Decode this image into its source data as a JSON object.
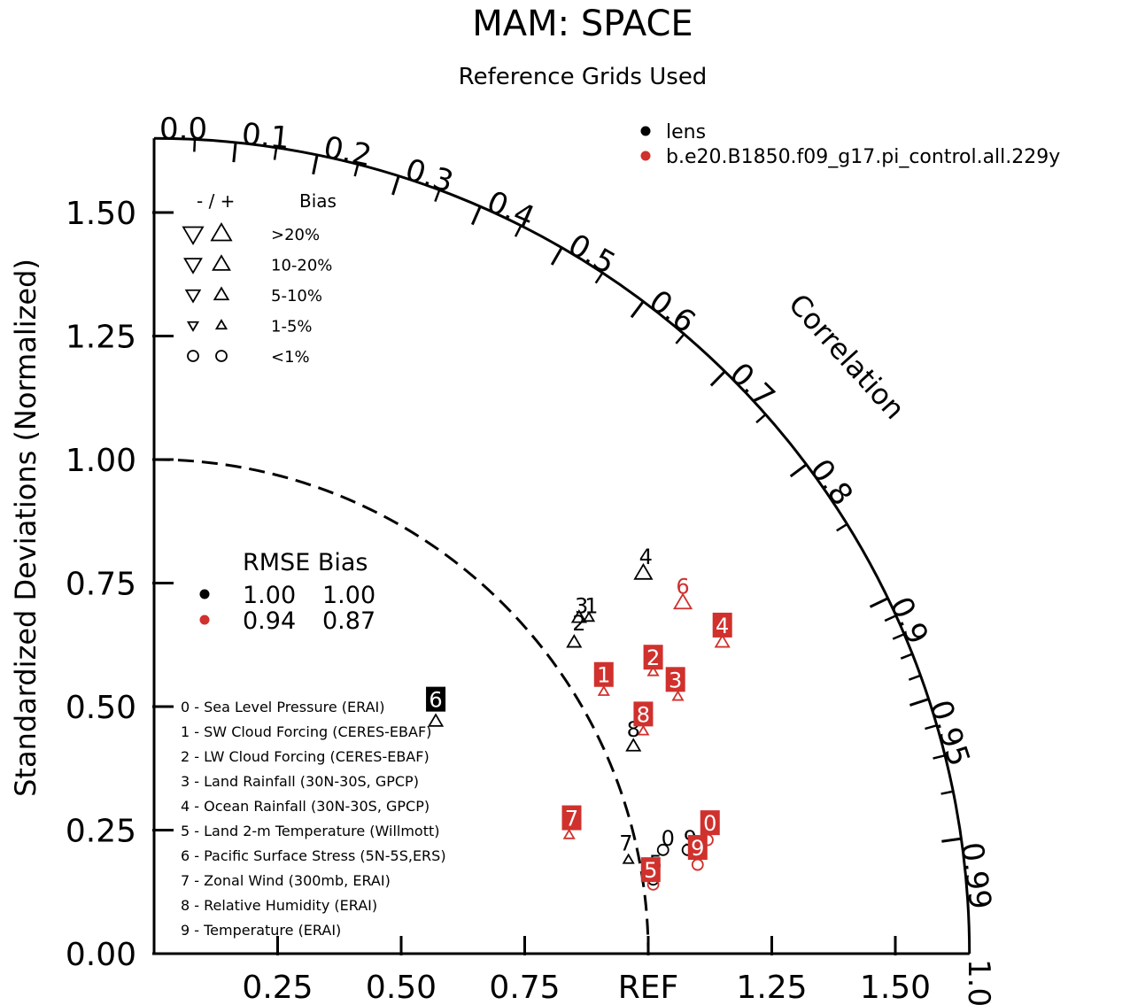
{
  "chart_data": {
    "type": "scatter",
    "subtype": "taylor-diagram",
    "title": "MAM: SPACE",
    "subtitle": "Reference Grids Used",
    "ylabel": "Standardized Deviations (Normalized)",
    "correlation_label": "Correlation",
    "ref_label": "REF",
    "sd_range": [
      0,
      1.65
    ],
    "y_ticks": [
      {
        "value": 0.0,
        "label": "0.00"
      },
      {
        "value": 0.25,
        "label": "0.25"
      },
      {
        "value": 0.5,
        "label": "0.50"
      },
      {
        "value": 0.75,
        "label": "0.75"
      },
      {
        "value": 1.0,
        "label": "1.00"
      },
      {
        "value": 1.25,
        "label": "1.25"
      },
      {
        "value": 1.5,
        "label": "1.50"
      }
    ],
    "x_ticks": [
      {
        "value": 0.25,
        "label": "0.25"
      },
      {
        "value": 0.5,
        "label": "0.50"
      },
      {
        "value": 0.75,
        "label": "0.75"
      },
      {
        "value": 1.0,
        "label": "REF"
      },
      {
        "value": 1.25,
        "label": "1.25"
      },
      {
        "value": 1.5,
        "label": "1.50"
      }
    ],
    "correlation_ticks": [
      {
        "value": 0.0,
        "label": "0.0"
      },
      {
        "value": 0.1,
        "label": "0.1"
      },
      {
        "value": 0.2,
        "label": "0.2"
      },
      {
        "value": 0.3,
        "label": "0.3"
      },
      {
        "value": 0.4,
        "label": "0.4"
      },
      {
        "value": 0.5,
        "label": "0.5"
      },
      {
        "value": 0.6,
        "label": "0.6"
      },
      {
        "value": 0.7,
        "label": "0.7"
      },
      {
        "value": 0.8,
        "label": "0.8"
      },
      {
        "value": 0.9,
        "label": "0.9"
      },
      {
        "value": 0.95,
        "label": "0.95"
      },
      {
        "value": 0.99,
        "label": "0.99"
      },
      {
        "value": 1.0,
        "label": "1.0"
      }
    ],
    "minor_correlation_ticks": [
      0.05,
      0.15,
      0.25,
      0.35,
      0.45,
      0.55,
      0.65,
      0.75,
      0.85,
      0.91,
      0.92,
      0.93,
      0.94,
      0.96,
      0.97,
      0.98
    ],
    "series": [
      {
        "name": "lens",
        "color": "#000000",
        "points": [
          {
            "id": "0",
            "x": 1.03,
            "y": 0.21,
            "bias": "<1%"
          },
          {
            "id": "1",
            "x": 0.88,
            "y": 0.68,
            "bias": "1-5%"
          },
          {
            "id": "2",
            "x": 0.85,
            "y": 0.63,
            "bias": "5-10%"
          },
          {
            "id": "3",
            "x": 0.86,
            "y": 0.68,
            "bias": "5-10%"
          },
          {
            "id": "4",
            "x": 0.99,
            "y": 0.77,
            "bias": "10-20%"
          },
          {
            "id": "5",
            "x": 1.01,
            "y": 0.15,
            "bias": "<1%"
          },
          {
            "id": "6",
            "x": 0.57,
            "y": 0.47,
            "bias": "5-10%"
          },
          {
            "id": "7",
            "x": 0.96,
            "y": 0.19,
            "bias": "1-5%"
          },
          {
            "id": "8",
            "x": 0.97,
            "y": 0.42,
            "bias": "5-10%"
          },
          {
            "id": "9",
            "x": 1.08,
            "y": 0.21,
            "bias": "<1%"
          }
        ]
      },
      {
        "name": "b.e20.B1850.f09_g17.pi_control.all.229y",
        "color": "#d0312d",
        "points": [
          {
            "id": "0",
            "x": 1.12,
            "y": 0.23,
            "bias": "<1%"
          },
          {
            "id": "1",
            "x": 0.91,
            "y": 0.53,
            "bias": "1-5%"
          },
          {
            "id": "2",
            "x": 1.01,
            "y": 0.57,
            "bias": "1-5%"
          },
          {
            "id": "3",
            "x": 1.06,
            "y": 0.52,
            "bias": "1-5%"
          },
          {
            "id": "4",
            "x": 1.15,
            "y": 0.63,
            "bias": "5-10%"
          },
          {
            "id": "5",
            "x": 1.01,
            "y": 0.14,
            "bias": "<1%"
          },
          {
            "id": "6",
            "x": 1.07,
            "y": 0.71,
            "bias": "10-20%"
          },
          {
            "id": "7",
            "x": 0.84,
            "y": 0.24,
            "bias": "1-5%"
          },
          {
            "id": "8",
            "x": 0.99,
            "y": 0.45,
            "bias": "1-5%"
          },
          {
            "id": "9",
            "x": 1.1,
            "y": 0.18,
            "bias": "<1%"
          }
        ]
      }
    ],
    "marker_labels": [
      {
        "series": 0,
        "id": "0",
        "x": 1.04,
        "y": 0.235,
        "boxed": false
      },
      {
        "series": 0,
        "id": "1",
        "x": 0.885,
        "y": 0.705,
        "boxed": false
      },
      {
        "series": 0,
        "id": "2",
        "x": 0.86,
        "y": 0.67,
        "boxed": false
      },
      {
        "series": 0,
        "id": "3",
        "x": 0.865,
        "y": 0.705,
        "boxed": false
      },
      {
        "series": 0,
        "id": "4",
        "x": 0.995,
        "y": 0.805,
        "boxed": false
      },
      {
        "series": 0,
        "id": "5",
        "x": 1.015,
        "y": 0.185,
        "boxed": false
      },
      {
        "series": 0,
        "id": "6",
        "x": 0.57,
        "y": 0.515,
        "boxed": true
      },
      {
        "series": 0,
        "id": "7",
        "x": 0.955,
        "y": 0.225,
        "boxed": false
      },
      {
        "series": 0,
        "id": "8",
        "x": 0.97,
        "y": 0.455,
        "boxed": false
      },
      {
        "series": 0,
        "id": "9",
        "x": 1.085,
        "y": 0.235,
        "boxed": false
      },
      {
        "series": 1,
        "id": "0",
        "x": 1.125,
        "y": 0.265,
        "boxed": true
      },
      {
        "series": 1,
        "id": "1",
        "x": 0.91,
        "y": 0.565,
        "boxed": true
      },
      {
        "series": 1,
        "id": "2",
        "x": 1.01,
        "y": 0.6,
        "boxed": true
      },
      {
        "series": 1,
        "id": "3",
        "x": 1.055,
        "y": 0.555,
        "boxed": true
      },
      {
        "series": 1,
        "id": "4",
        "x": 1.15,
        "y": 0.665,
        "boxed": true
      },
      {
        "series": 1,
        "id": "5",
        "x": 1.005,
        "y": 0.17,
        "boxed": true
      },
      {
        "series": 1,
        "id": "6",
        "x": 1.07,
        "y": 0.745,
        "boxed": false
      },
      {
        "series": 1,
        "id": "7",
        "x": 0.845,
        "y": 0.275,
        "boxed": true
      },
      {
        "series": 1,
        "id": "8",
        "x": 0.99,
        "y": 0.485,
        "boxed": true
      },
      {
        "series": 1,
        "id": "9",
        "x": 1.1,
        "y": 0.215,
        "boxed": true
      }
    ],
    "legend": [
      {
        "label": "lens",
        "color": "#000000"
      },
      {
        "label": "b.e20.B1850.f09_g17.pi_control.all.229y",
        "color": "#d0312d"
      }
    ],
    "legend_placement": "top-right",
    "bias_legend": {
      "header_signs": "- / +",
      "header_label": "Bias",
      "rows": [
        {
          "label": ">20%",
          "shape": "triangle",
          "size": 1.0
        },
        {
          "label": "10-20%",
          "shape": "triangle",
          "size": 0.85
        },
        {
          "label": "5-10%",
          "shape": "triangle",
          "size": 0.7
        },
        {
          "label": "1-5%",
          "shape": "triangle",
          "size": 0.5
        },
        {
          "label": "<1%",
          "shape": "circle",
          "size": 0.6
        }
      ]
    },
    "rmse_table": {
      "header": "RMSE Bias",
      "rows": [
        {
          "color": "#000000",
          "rmse": "1.00",
          "bias": "1.00"
        },
        {
          "color": "#d0312d",
          "rmse": "0.94",
          "bias": "0.87"
        }
      ]
    },
    "case_list": [
      "0 - Sea Level Pressure (ERAI)",
      "1 - SW Cloud Forcing (CERES-EBAF)",
      "2 - LW Cloud Forcing (CERES-EBAF)",
      "3 - Land Rainfall (30N-30S, GPCP)",
      "4 - Ocean Rainfall (30N-30S, GPCP)",
      "5 - Land 2-m Temperature (Willmott)",
      "6 - Pacific Surface Stress (5N-5S,ERS)",
      "7 - Zonal Wind (300mb, ERAI)",
      "8 - Relative Humidity (ERAI)",
      "9 - Temperature (ERAI)"
    ],
    "reference_arc": {
      "radius": 1.0,
      "style": "dashed"
    }
  }
}
